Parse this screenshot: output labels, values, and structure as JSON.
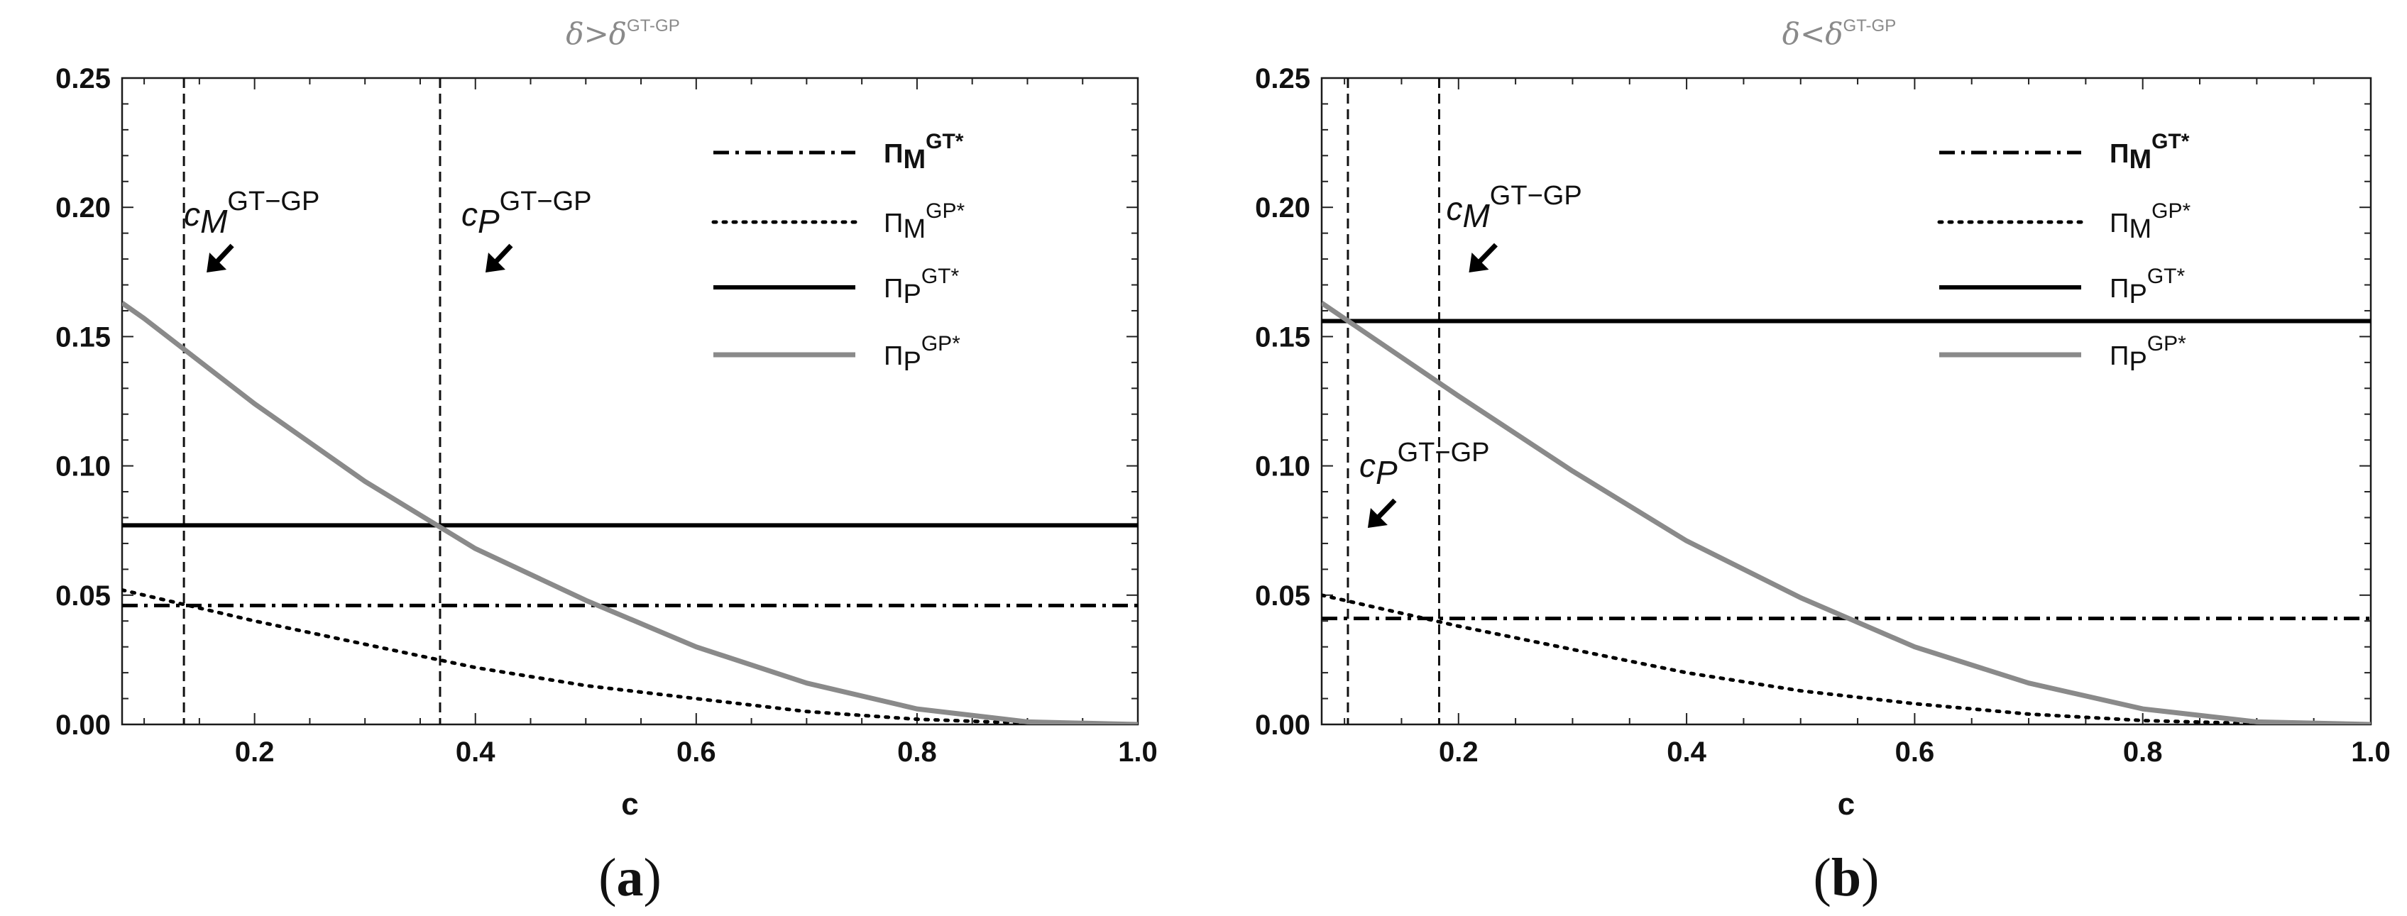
{
  "chart_data": [
    {
      "type": "line",
      "panel_label": "(a)",
      "title_text": "δ>δ",
      "title_sup": "GT-GP",
      "xlabel": "c",
      "ylabel": "",
      "xlim": [
        0.08,
        1.0
      ],
      "ylim": [
        0.0,
        0.25
      ],
      "xticks": [
        "0.2",
        "0.4",
        "0.6",
        "0.8",
        "1.0"
      ],
      "yticks": [
        "0.00",
        "0.05",
        "0.10",
        "0.15",
        "0.20",
        "0.25"
      ],
      "grid": false,
      "legend_position": "top-right",
      "series": [
        {
          "name": "ΠMGT*",
          "label_main": "Π",
          "label_sub": "M",
          "label_sup": "GT*",
          "style": "dashdot",
          "color": "#000000",
          "x": [
            0.08,
            1.0
          ],
          "y": [
            0.046,
            0.046
          ]
        },
        {
          "name": "ΠMGP*",
          "label_main": "Π",
          "label_sub": "M",
          "label_sup": "GP*",
          "style": "dotted",
          "color": "#000000",
          "x": [
            0.08,
            0.2,
            0.3,
            0.4,
            0.5,
            0.6,
            0.7,
            0.8,
            0.9,
            1.0
          ],
          "y": [
            0.052,
            0.04,
            0.031,
            0.022,
            0.015,
            0.01,
            0.005,
            0.002,
            0.0005,
            0.0
          ]
        },
        {
          "name": "ΠPGT*",
          "label_main": "Π",
          "label_sub": "P",
          "label_sup": "GT*",
          "style": "solid",
          "color": "#000000",
          "x": [
            0.08,
            1.0
          ],
          "y": [
            0.077,
            0.077
          ]
        },
        {
          "name": "ΠPGP*",
          "label_main": "Π",
          "label_sub": "P",
          "label_sup": "GP*",
          "style": "solid",
          "color": "#8a8a8a",
          "x": [
            0.08,
            0.1,
            0.2,
            0.3,
            0.4,
            0.5,
            0.6,
            0.7,
            0.8,
            0.9,
            1.0
          ],
          "y": [
            0.163,
            0.157,
            0.124,
            0.094,
            0.068,
            0.048,
            0.03,
            0.016,
            0.006,
            0.001,
            0.0
          ]
        }
      ],
      "vlines": [
        0.136,
        0.368
      ],
      "annotations": [
        {
          "main": "c",
          "sub": "M",
          "sup": "GT−GP",
          "x": 0.136
        },
        {
          "main": "c",
          "sub": "P",
          "sup": "GT−GP",
          "x": 0.368
        }
      ]
    },
    {
      "type": "line",
      "panel_label": "(b)",
      "title_text": "δ<δ",
      "title_sup": "GT-GP",
      "xlabel": "c",
      "ylabel": "",
      "xlim": [
        0.08,
        1.0
      ],
      "ylim": [
        0.0,
        0.25
      ],
      "xticks": [
        "0.2",
        "0.4",
        "0.6",
        "0.8",
        "1.0"
      ],
      "yticks": [
        "0.00",
        "0.05",
        "0.10",
        "0.15",
        "0.20",
        "0.25"
      ],
      "grid": false,
      "legend_position": "top-right",
      "series": [
        {
          "name": "ΠMGT*",
          "label_main": "Π",
          "label_sub": "M",
          "label_sup": "GT*",
          "style": "dashdot",
          "color": "#000000",
          "x": [
            0.08,
            1.0
          ],
          "y": [
            0.041,
            0.041
          ]
        },
        {
          "name": "ΠMGP*",
          "label_main": "Π",
          "label_sub": "M",
          "label_sup": "GP*",
          "style": "dotted",
          "color": "#000000",
          "x": [
            0.08,
            0.2,
            0.3,
            0.4,
            0.5,
            0.6,
            0.7,
            0.8,
            0.9,
            1.0
          ],
          "y": [
            0.05,
            0.038,
            0.029,
            0.02,
            0.013,
            0.008,
            0.004,
            0.0015,
            0.0003,
            0.0
          ]
        },
        {
          "name": "ΠPGT*",
          "label_main": "Π",
          "label_sub": "P",
          "label_sup": "GT*",
          "style": "solid",
          "color": "#000000",
          "x": [
            0.08,
            1.0
          ],
          "y": [
            0.156,
            0.156
          ]
        },
        {
          "name": "ΠPGP*",
          "label_main": "Π",
          "label_sub": "P",
          "label_sup": "GP*",
          "style": "solid",
          "color": "#8a8a8a",
          "x": [
            0.08,
            0.1,
            0.2,
            0.3,
            0.4,
            0.5,
            0.6,
            0.7,
            0.8,
            0.9,
            1.0
          ],
          "y": [
            0.163,
            0.157,
            0.127,
            0.098,
            0.071,
            0.049,
            0.03,
            0.016,
            0.006,
            0.001,
            0.0
          ]
        }
      ],
      "vlines": [
        0.103,
        0.183
      ],
      "annotations": [
        {
          "main": "c",
          "sub": "M",
          "sup": "GT−GP",
          "x": 0.183
        },
        {
          "main": "c",
          "sub": "P",
          "sup": "GT−GP",
          "x": 0.103
        }
      ]
    }
  ]
}
